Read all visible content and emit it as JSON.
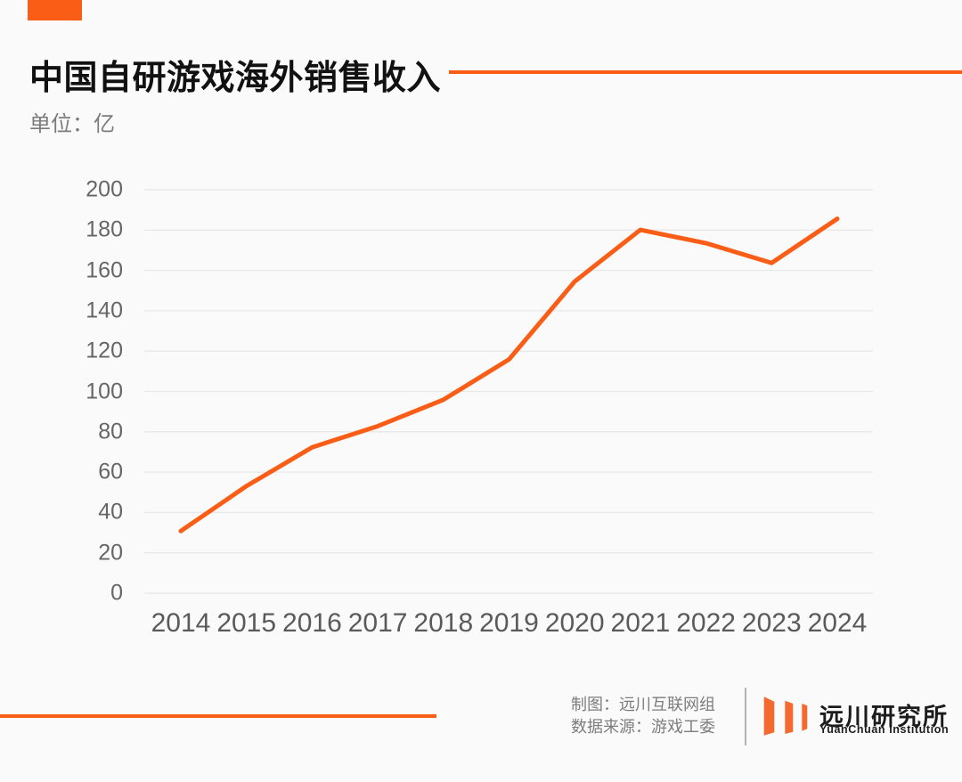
{
  "chart_data": {
    "type": "line",
    "title": "中国自研游戏海外销售收入",
    "unit_label": "单位：亿",
    "categories": [
      "2014",
      "2015",
      "2016",
      "2017",
      "2018",
      "2019",
      "2020",
      "2021",
      "2022",
      "2023",
      "2024"
    ],
    "values": [
      30.8,
      53.1,
      72.3,
      82.8,
      95.9,
      115.9,
      154.5,
      180.1,
      173.5,
      163.7,
      185.6
    ],
    "xlabel": "",
    "ylabel": "",
    "ylim": [
      0,
      200
    ],
    "ytick_step": 20,
    "grid": true,
    "legend": "none",
    "line_color": "#FA5D16"
  },
  "colors": {
    "accent_orange": "#FA5D16",
    "logo_orange": "#F4692F",
    "gridline": "#E8E8E8",
    "background": "#FAFAFA"
  },
  "footer": {
    "credit_maker": "制图：远川互联网组",
    "data_source": "数据来源：游戏工委",
    "logo_cn": "远川研究所",
    "logo_en": "YuanChuan Institution"
  }
}
